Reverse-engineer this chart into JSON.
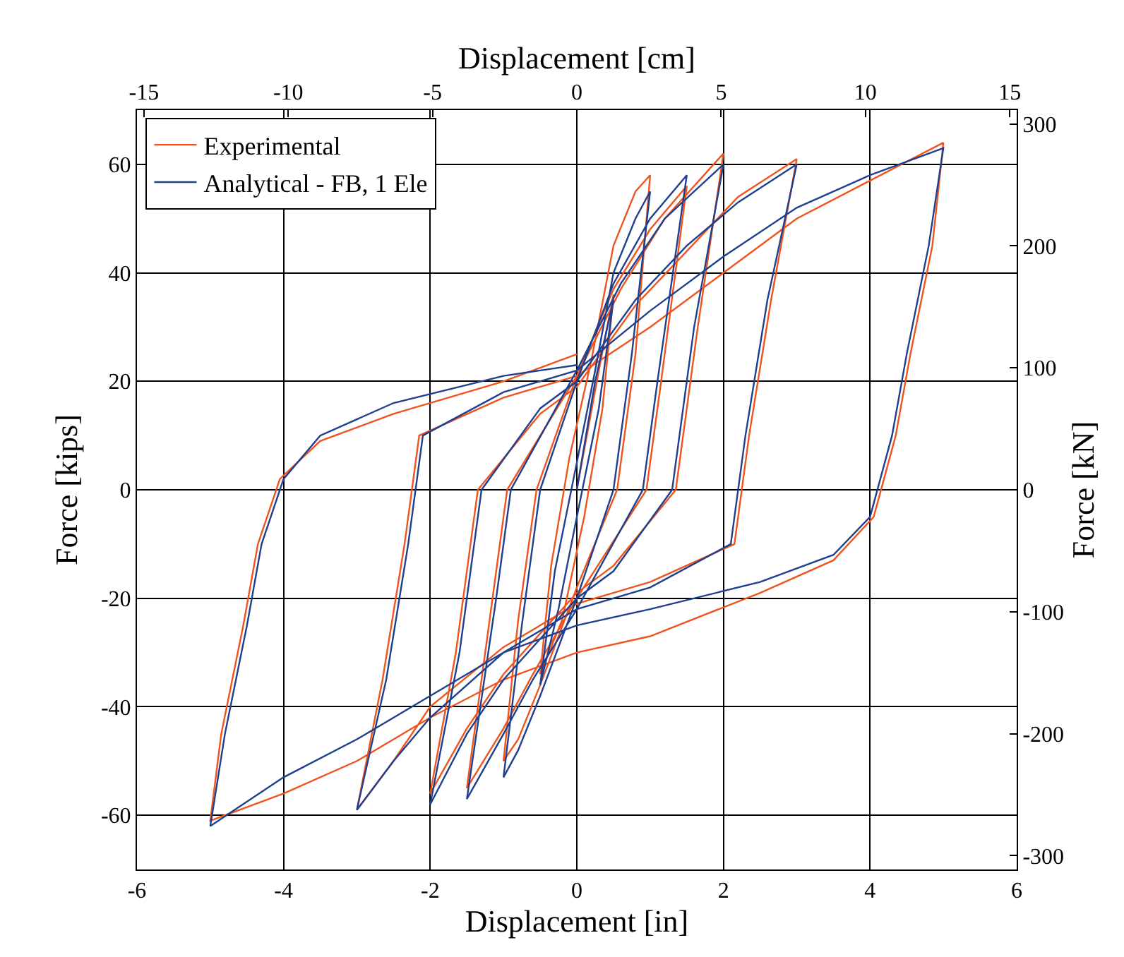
{
  "chart_data": {
    "type": "line",
    "xlabel": "Displacement [in]",
    "ylabel": "Force [kips]",
    "x2label": "Displacement [cm]",
    "y2label": "Force [kN]",
    "xlim": [
      -6,
      6
    ],
    "xticks": [
      -6,
      -4,
      -2,
      0,
      2,
      4,
      6
    ],
    "ylim": [
      -70,
      70
    ],
    "yticks": [
      -60,
      -40,
      -20,
      0,
      20,
      40,
      60
    ],
    "x2lim": [
      -15.24,
      15.24
    ],
    "x2ticks": [
      -15,
      -10,
      -5,
      0,
      5,
      10,
      15
    ],
    "y2lim": [
      -311.4,
      311.4
    ],
    "y2ticks": [
      -300,
      -200,
      -100,
      0,
      100,
      200,
      300
    ],
    "grid": true,
    "legend": "top left",
    "line_style": "solid",
    "marker": "none",
    "series": [
      {
        "name": "Experimental",
        "color": "#f0541e",
        "x": [
          0,
          0.3,
          0.5,
          0.35,
          0.1,
          -0.2,
          -0.5,
          -0.35,
          -0.1,
          0.2,
          0.5,
          0.8,
          1,
          0.8,
          0.55,
          0,
          -0.5,
          -0.8,
          -1,
          -0.8,
          -0.55,
          0,
          0.5,
          1,
          1.5,
          1.15,
          0.95,
          0,
          -0.6,
          -1,
          -1.5,
          -1.15,
          -0.95,
          0,
          0.6,
          1.2,
          2,
          1.65,
          1.35,
          0.5,
          0,
          -1,
          -1.5,
          -2,
          -1.65,
          -1.35,
          -0.5,
          0,
          0.8,
          1.5,
          2.2,
          3,
          2.65,
          2.35,
          2.15,
          1,
          0,
          -1,
          -2,
          -2.5,
          -3,
          -2.65,
          -2.35,
          -2.15,
          -1,
          0,
          1,
          2,
          3,
          4,
          5,
          4.85,
          4.55,
          4.35,
          4.05,
          3.5,
          2.5,
          1,
          0,
          -1,
          -2,
          -3,
          -4,
          -5,
          -4.85,
          -4.55,
          -4.35,
          -4.05,
          -3.5,
          -2.5,
          -1,
          0
        ],
        "values": [
          0,
          22,
          36,
          15,
          -5,
          -24,
          -34,
          -14,
          6,
          24,
          45,
          55,
          58,
          25,
          0,
          -18,
          -36,
          -46,
          -50,
          -24,
          0,
          21,
          37,
          48,
          56,
          20,
          0,
          -20,
          -34,
          -44,
          -55,
          -20,
          0,
          21,
          37,
          50,
          62,
          30,
          0,
          -14,
          -19,
          -34,
          -44,
          -56,
          -30,
          0,
          14,
          19,
          34,
          44,
          54,
          61,
          35,
          10,
          -10,
          -17,
          -21,
          -29,
          -40,
          -50,
          -59,
          -35,
          -10,
          10,
          17,
          21,
          30,
          40,
          50,
          57,
          64,
          45,
          25,
          10,
          -5,
          -13,
          -19,
          -27,
          -30,
          -35,
          -42,
          -50,
          -56,
          -61,
          -45,
          -25,
          -10,
          2,
          9,
          14,
          20,
          25
        ]
      },
      {
        "name": "Analytical - FB, 1 Ele",
        "color": "#1f3f8f",
        "x": [
          0,
          0.25,
          0.5,
          0.3,
          0,
          -0.25,
          -0.5,
          -0.3,
          0,
          0.25,
          0.5,
          0.8,
          1,
          0.75,
          0.5,
          0,
          -0.5,
          -0.8,
          -1,
          -0.75,
          -0.5,
          0,
          0.5,
          1,
          1.5,
          1.1,
          0.9,
          0,
          -0.6,
          -1,
          -1.5,
          -1.1,
          -0.9,
          0,
          0.6,
          1.2,
          2,
          1.6,
          1.3,
          0.5,
          0,
          -1,
          -1.5,
          -2,
          -1.6,
          -1.3,
          -0.5,
          0,
          0.8,
          1.5,
          2.2,
          3,
          2.6,
          2.3,
          2.1,
          1,
          0,
          -1,
          -2,
          -2.5,
          -3,
          -2.6,
          -2.3,
          -2.1,
          -1,
          0,
          1,
          2,
          3,
          4,
          5,
          4.8,
          4.5,
          4.3,
          4,
          3.5,
          2.5,
          1,
          0,
          -1,
          -2,
          -3,
          -4,
          -5,
          -4.8,
          -4.5,
          -4.3,
          -4,
          -3.5,
          -2.5,
          -1,
          0
        ],
        "values": [
          0,
          20,
          35,
          15,
          -5,
          -22,
          -36,
          -15,
          5,
          22,
          40,
          50,
          55,
          25,
          0,
          -20,
          -38,
          -48,
          -53,
          -25,
          0,
          20,
          38,
          50,
          58,
          20,
          0,
          -22,
          -35,
          -45,
          -57,
          -20,
          0,
          22,
          38,
          50,
          60,
          30,
          0,
          -15,
          -20,
          -35,
          -45,
          -58,
          -30,
          0,
          15,
          20,
          35,
          45,
          53,
          60,
          35,
          10,
          -10,
          -18,
          -22,
          -30,
          -42,
          -50,
          -59,
          -35,
          -10,
          10,
          18,
          22,
          33,
          43,
          52,
          58,
          63,
          45,
          25,
          10,
          -5,
          -12,
          -17,
          -22,
          -25,
          -30,
          -38,
          -46,
          -53,
          -62,
          -45,
          -25,
          -10,
          2,
          10,
          16,
          21,
          23
        ]
      }
    ]
  }
}
